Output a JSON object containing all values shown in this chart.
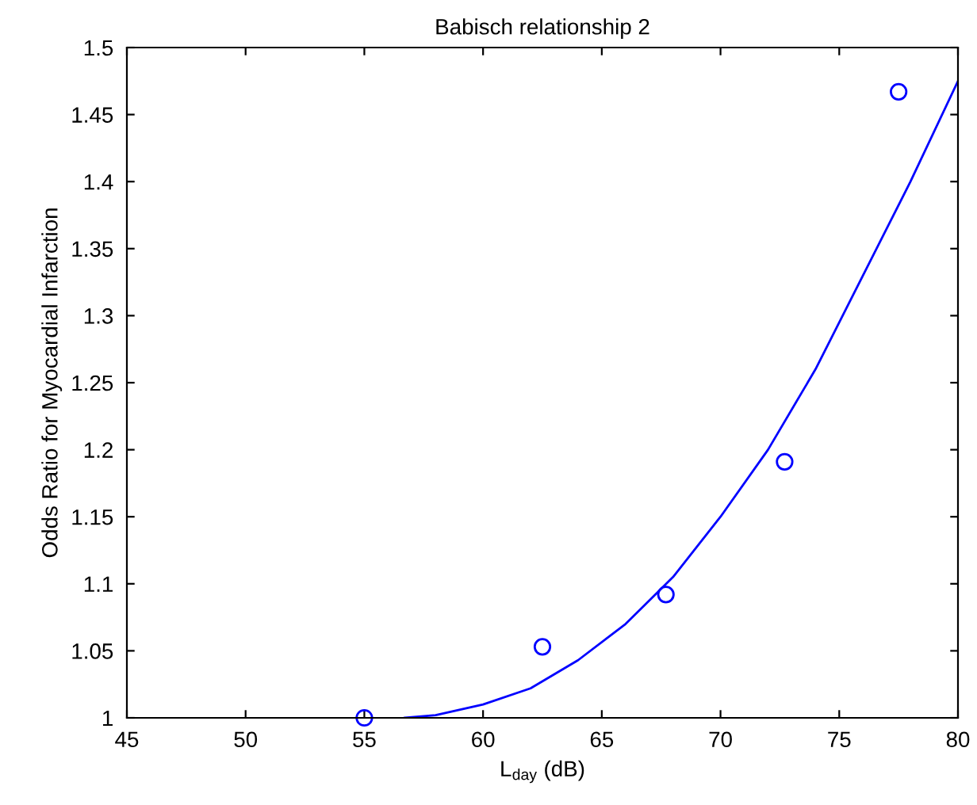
{
  "chart_data": {
    "type": "scatter",
    "title": "Babisch relationship 2",
    "xlabel": "L$_{day}$ (dB)",
    "ylabel": "Odds Ratio for Myocardial Infarction",
    "series": [
      {
        "color": "#0000ff",
        "marker": "circle",
        "x": [
          55,
          62.5,
          67.7,
          72.7,
          77.5
        ],
        "values": [
          1.0,
          1.053,
          1.092,
          1.191,
          1.467
        ]
      },
      {
        "type": "line",
        "color": "#0000ff",
        "marker": "none",
        "line_style": "solid",
        "x": [
          56.7,
          58,
          60,
          62,
          64,
          66,
          68,
          70,
          72,
          74,
          76,
          78,
          80
        ],
        "values": [
          1.0,
          1.002,
          1.01,
          1.022,
          1.043,
          1.07,
          1.105,
          1.15,
          1.2,
          1.26,
          1.33,
          1.4,
          1.475
        ]
      }
    ],
    "xlim": [
      45,
      80
    ],
    "xticks": [
      45,
      50,
      55,
      60,
      65,
      70,
      75,
      80
    ],
    "ylim": [
      1,
      1.5
    ],
    "yticks": [
      1,
      1.05,
      1.1,
      1.15,
      1.2,
      1.25,
      1.3,
      1.35,
      1.4,
      1.45,
      1.5
    ],
    "grid": false,
    "legend": false
  }
}
